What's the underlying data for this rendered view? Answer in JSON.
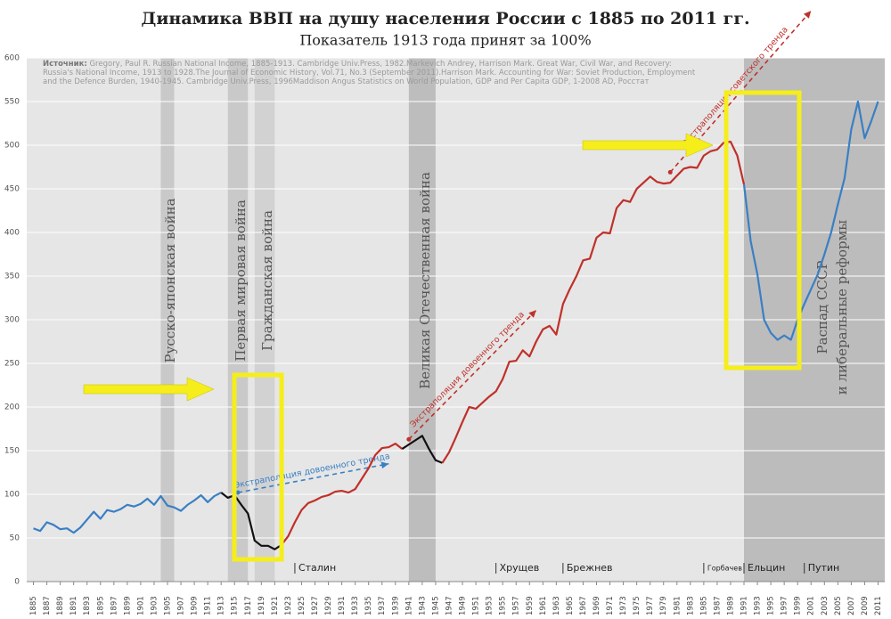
{
  "chart_data": {
    "type": "line",
    "title": "Динамика ВВП на душу населения России с 1885 по 2011 гг.",
    "subtitle": "Показатель 1913 года принят за 100%",
    "source_label": "Источник:",
    "source": "Gregory, Paul R. Russian National Income, 1885-1913. Cambridge Univ.Press, 1982.Markevich Andrey, Harrison Mark. Great War, Civil War, and Recovery: Russia's National Income, 1913 to 1928.The Journal of Economic History, Vol.71, No.3 (September 2011).Harrison Mark. Accounting for War: Soviet Production, Employment and the Defence Burden, 1940-1945. Cambridge Univ.Press, 1996Maddison Angus Statistics on World Population, GDP and Per Capita GDP, 1-2008 AD, Росстат",
    "xlim": [
      1884,
      2012
    ],
    "ylim": [
      0,
      600
    ],
    "yticks": [
      0,
      50,
      100,
      150,
      200,
      250,
      300,
      350,
      400,
      450,
      500,
      550,
      600
    ],
    "xticks": [
      1885,
      1887,
      1889,
      1891,
      1893,
      1895,
      1897,
      1899,
      1901,
      1903,
      1905,
      1907,
      1909,
      1911,
      1913,
      1915,
      1917,
      1919,
      1921,
      1923,
      1925,
      1927,
      1929,
      1931,
      1933,
      1935,
      1937,
      1939,
      1941,
      1943,
      1945,
      1947,
      1949,
      1951,
      1953,
      1955,
      1957,
      1959,
      1961,
      1963,
      1965,
      1967,
      1969,
      1971,
      1973,
      1975,
      1977,
      1979,
      1981,
      1983,
      1985,
      1987,
      1989,
      1991,
      1993,
      1995,
      1997,
      1999,
      2001,
      2003,
      2005,
      2007,
      2009,
      2011
    ],
    "grid": true,
    "series": [
      {
        "color": "#3a7fc4",
        "x": [
          1885,
          1886,
          1887,
          1888,
          1889,
          1890,
          1891,
          1892,
          1893,
          1894,
          1895,
          1896,
          1897,
          1898,
          1899,
          1900,
          1901,
          1902,
          1903,
          1904,
          1905,
          1906,
          1907,
          1908,
          1909,
          1910,
          1911,
          1912,
          1913
        ],
        "values": [
          61,
          58,
          68,
          65,
          60,
          61,
          56,
          62,
          71,
          80,
          72,
          82,
          80,
          83,
          88,
          86,
          89,
          95,
          88,
          98,
          87,
          85,
          81,
          88,
          93,
          99,
          91,
          98,
          102
        ]
      },
      {
        "color": "#111111",
        "x": [
          1913,
          1914,
          1915,
          1916,
          1917,
          1918,
          1919,
          1920,
          1921,
          1922
        ],
        "values": [
          102,
          96,
          99,
          88,
          78,
          47,
          41,
          41,
          37,
          42
        ]
      },
      {
        "color": "#c0302a",
        "x": [
          1922,
          1923,
          1924,
          1925,
          1926,
          1927,
          1928,
          1929,
          1930,
          1931,
          1932,
          1933,
          1934,
          1935,
          1936,
          1937,
          1938,
          1939,
          1940
        ],
        "values": [
          42,
          52,
          68,
          82,
          90,
          93,
          97,
          99,
          103,
          104,
          102,
          106,
          118,
          130,
          145,
          153,
          154,
          158,
          152
        ]
      },
      {
        "color": "#111111",
        "x": [
          1940,
          1941,
          1942,
          1943,
          1944,
          1945,
          1946
        ],
        "values": [
          152,
          157,
          162,
          167,
          152,
          139,
          136
        ]
      },
      {
        "color": "#c0302a",
        "x": [
          1946,
          1947,
          1948,
          1949,
          1950,
          1951,
          1952,
          1953,
          1954,
          1955,
          1956,
          1957,
          1958,
          1959,
          1960,
          1961,
          1962,
          1963,
          1964,
          1965,
          1966,
          1967,
          1968,
          1969,
          1970,
          1971,
          1972,
          1973,
          1974,
          1975,
          1976,
          1977,
          1978,
          1979,
          1980,
          1981,
          1982,
          1983,
          1984,
          1985,
          1986,
          1987,
          1988,
          1989,
          1990,
          1991
        ],
        "values": [
          136,
          148,
          165,
          183,
          200,
          198,
          205,
          212,
          218,
          232,
          252,
          253,
          265,
          258,
          275,
          289,
          293,
          283,
          318,
          335,
          350,
          368,
          370,
          394,
          400,
          399,
          428,
          437,
          435,
          450,
          457,
          464,
          458,
          456,
          457,
          465,
          473,
          475,
          474,
          488,
          493,
          495,
          503,
          504,
          488,
          455
        ]
      },
      {
        "color": "#3a7fc4",
        "x": [
          1991,
          1992,
          1993,
          1994,
          1995,
          1996,
          1997,
          1998,
          1999,
          2000,
          2001,
          2002,
          2003,
          2004,
          2005,
          2006,
          2007,
          2008,
          2009,
          2010,
          2011
        ],
        "values": [
          455,
          390,
          352,
          300,
          285,
          277,
          282,
          277,
          300,
          318,
          335,
          352,
          375,
          400,
          432,
          462,
          518,
          550,
          508,
          528,
          550
        ]
      }
    ],
    "bands": [
      {
        "label": "Русско-японская война",
        "start": 1904,
        "end": 1906,
        "color": "#c9c9c9"
      },
      {
        "label": "Первая мировая война",
        "start": 1914,
        "end": 1917,
        "color": "#c9c9c9"
      },
      {
        "label": "Гражданская война",
        "start": 1918,
        "end": 1921,
        "color": "#d2d2d2"
      },
      {
        "label": "Великая Отечественная война",
        "start": 1941,
        "end": 1945,
        "color": "#bdbdbd"
      },
      {
        "label": [
          "Распад СССР",
          "и либеральные реформы"
        ],
        "start": 1991,
        "end": 2012,
        "color": "#bcbcbc"
      }
    ],
    "leaders": [
      {
        "label": "Сталин",
        "year": 1924
      },
      {
        "label": "Хрущев",
        "year": 1954
      },
      {
        "label": "Брежнев",
        "year": 1964
      },
      {
        "label": "Горбачев",
        "year": 1985
      },
      {
        "label": "Ельцин",
        "year": 1991
      },
      {
        "label": "Путин",
        "year": 2000
      }
    ],
    "trends": [
      {
        "label": "Экстраполяция довоенного тренда",
        "color": "#3a7fc4",
        "x": [
          1915.5,
          1938
        ],
        "values": [
          102,
          135
        ]
      },
      {
        "label": "Экстраполяция довоенного тренда",
        "color": "#c0302a",
        "x": [
          1941,
          1960
        ],
        "values": [
          163,
          311
        ]
      },
      {
        "label": "Экстраполяция советского тренда",
        "color": "#c0302a",
        "x": [
          1980,
          2001
        ],
        "values": [
          469,
          654
        ]
      }
    ]
  }
}
